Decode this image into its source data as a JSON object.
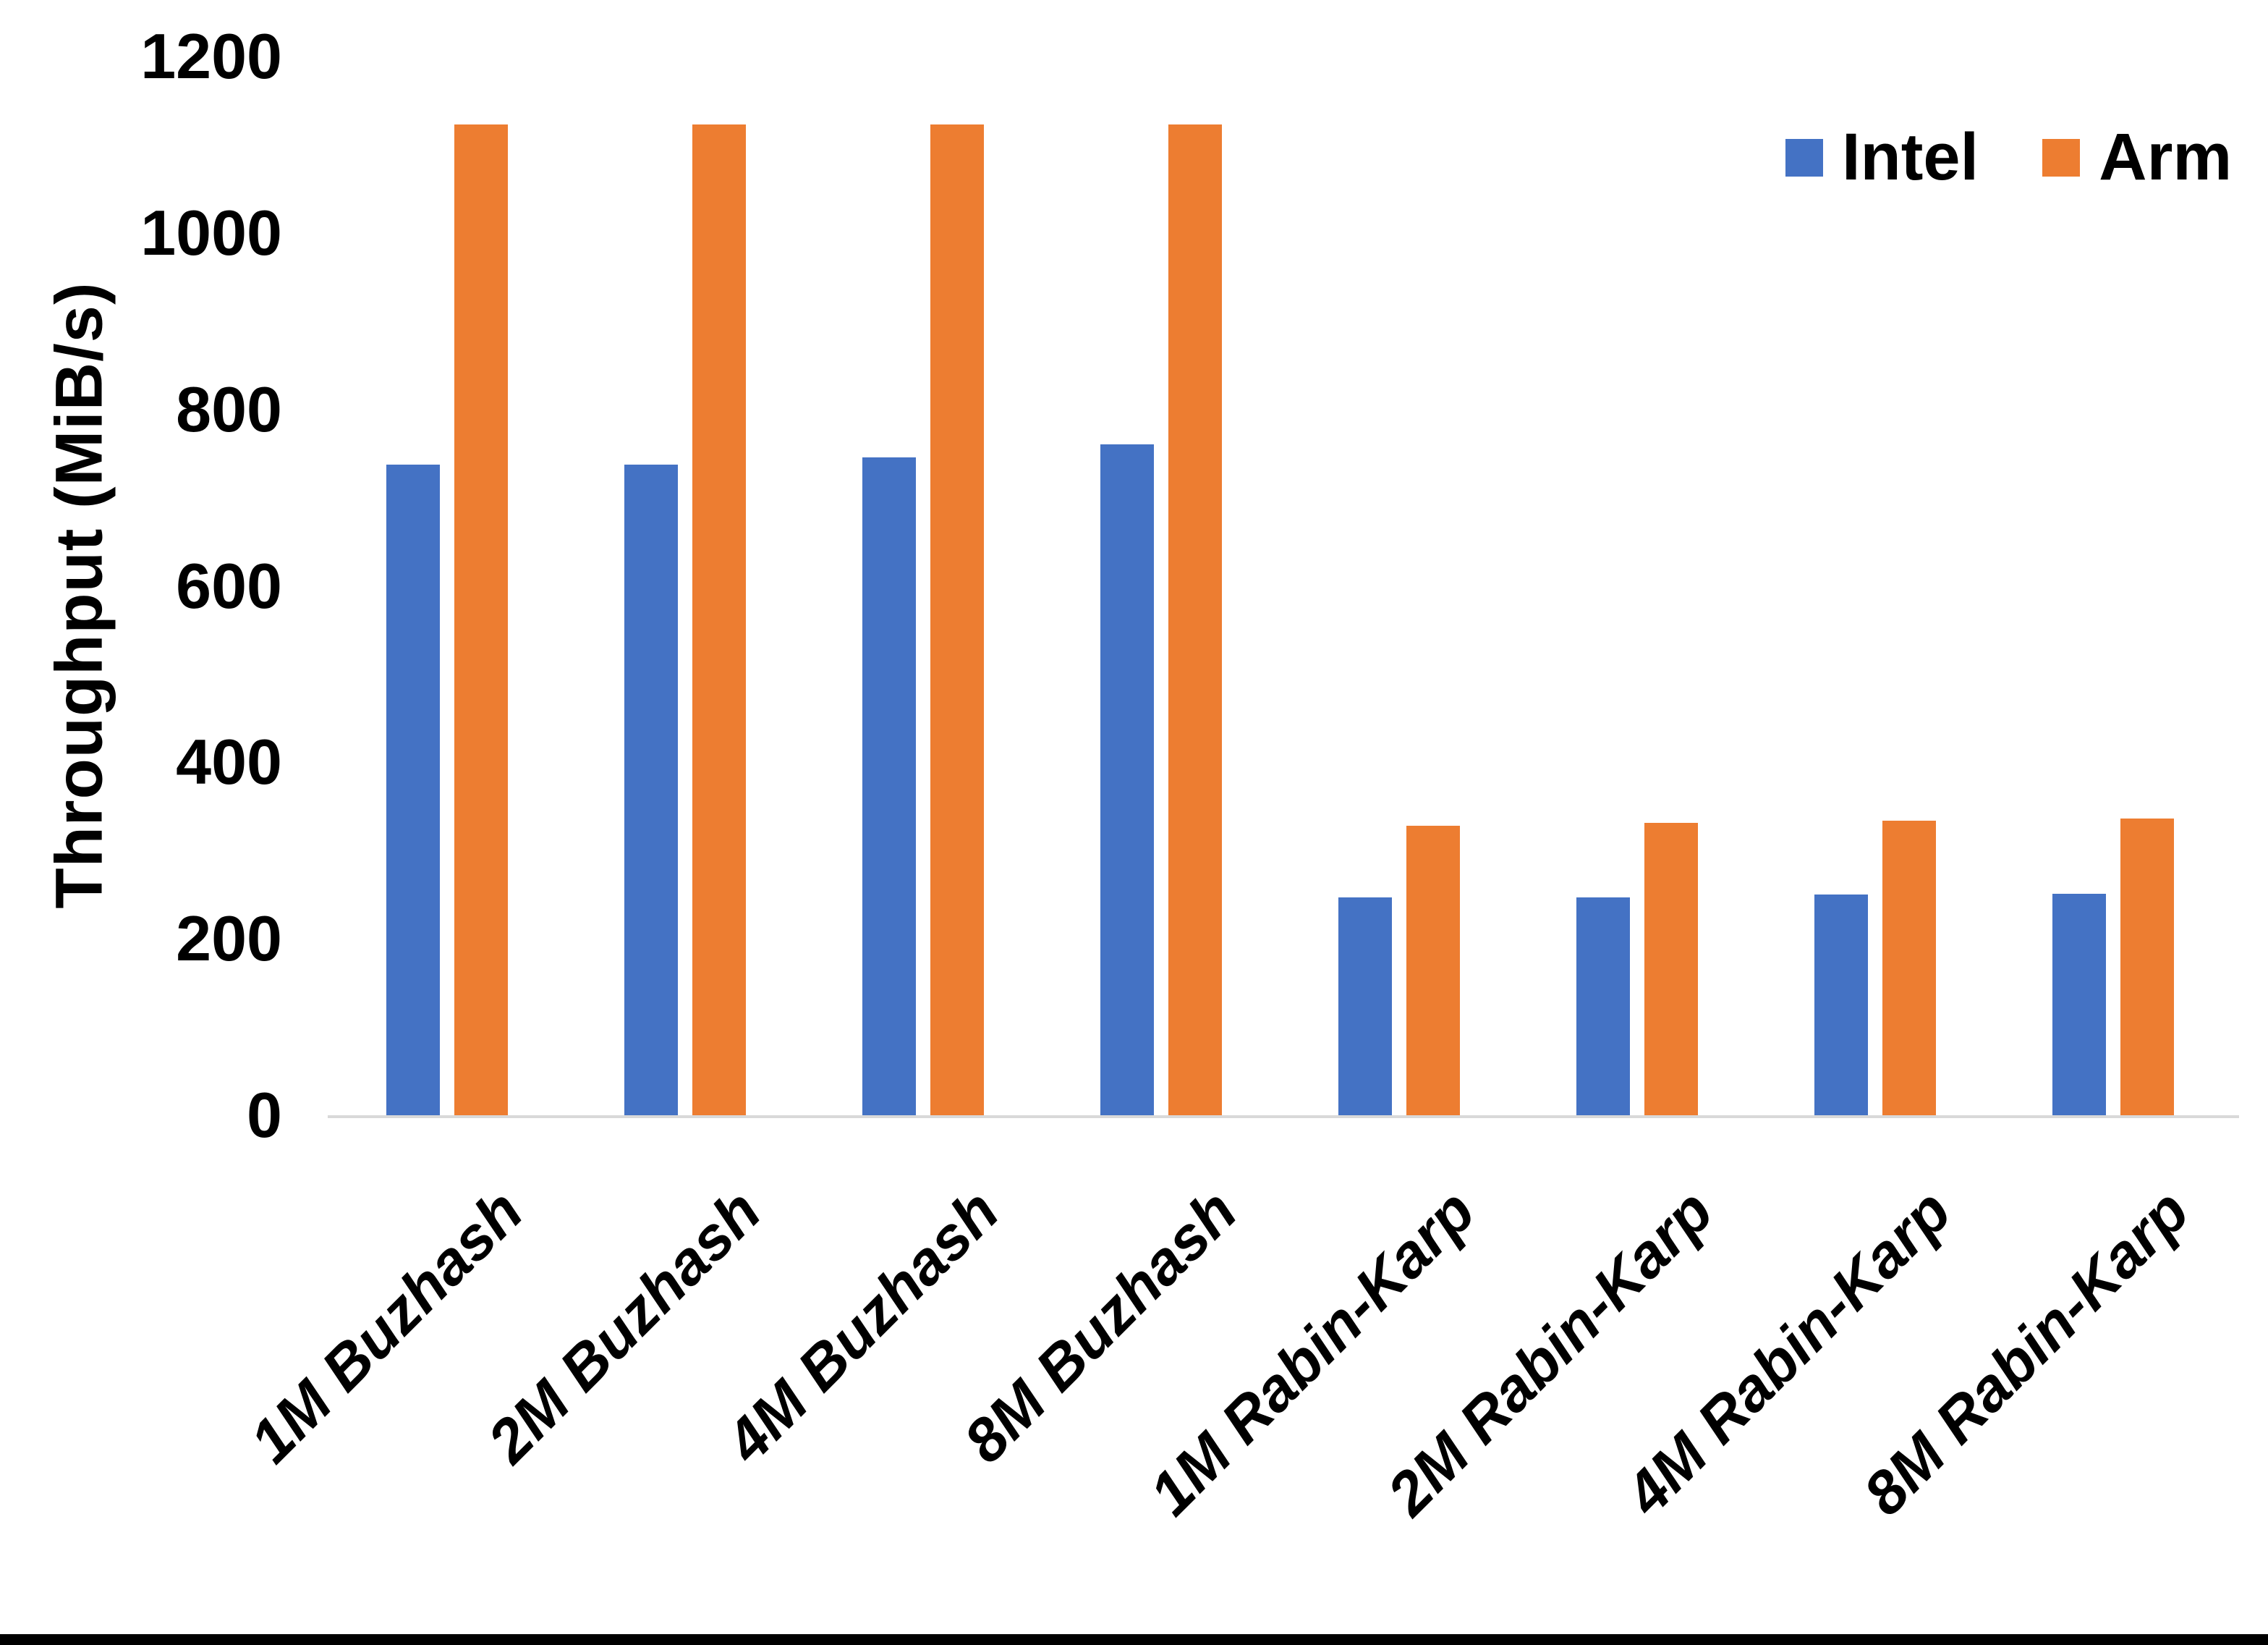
{
  "chart_data": {
    "type": "bar",
    "title": "",
    "xlabel": "",
    "ylabel": "Throughput (MiB/s)",
    "ylim": [
      0,
      1200
    ],
    "yticks": [
      0,
      200,
      400,
      600,
      800,
      1000,
      1200
    ],
    "grid": false,
    "legend_position": "top-right",
    "categories": [
      "1M Buzhash",
      "2M Buzhash",
      "4M Buzhash",
      "8M Buzhash",
      "1M Rabin-Karp",
      "2M Rabin-Karp",
      "4M Rabin-Karp",
      "8M Rabin-Karp"
    ],
    "series": [
      {
        "name": "Intel",
        "color": "#4472C4",
        "values": [
          737,
          737,
          746,
          760,
          247,
          247,
          250,
          251
        ]
      },
      {
        "name": "Arm",
        "color": "#ED7D31",
        "values": [
          1123,
          1123,
          1123,
          1123,
          328,
          331,
          334,
          336
        ]
      }
    ]
  },
  "colors": {
    "axis_line": "#d9d9d9",
    "background": "#ffffff",
    "text": "#000000",
    "bottom_border": "#000000"
  }
}
